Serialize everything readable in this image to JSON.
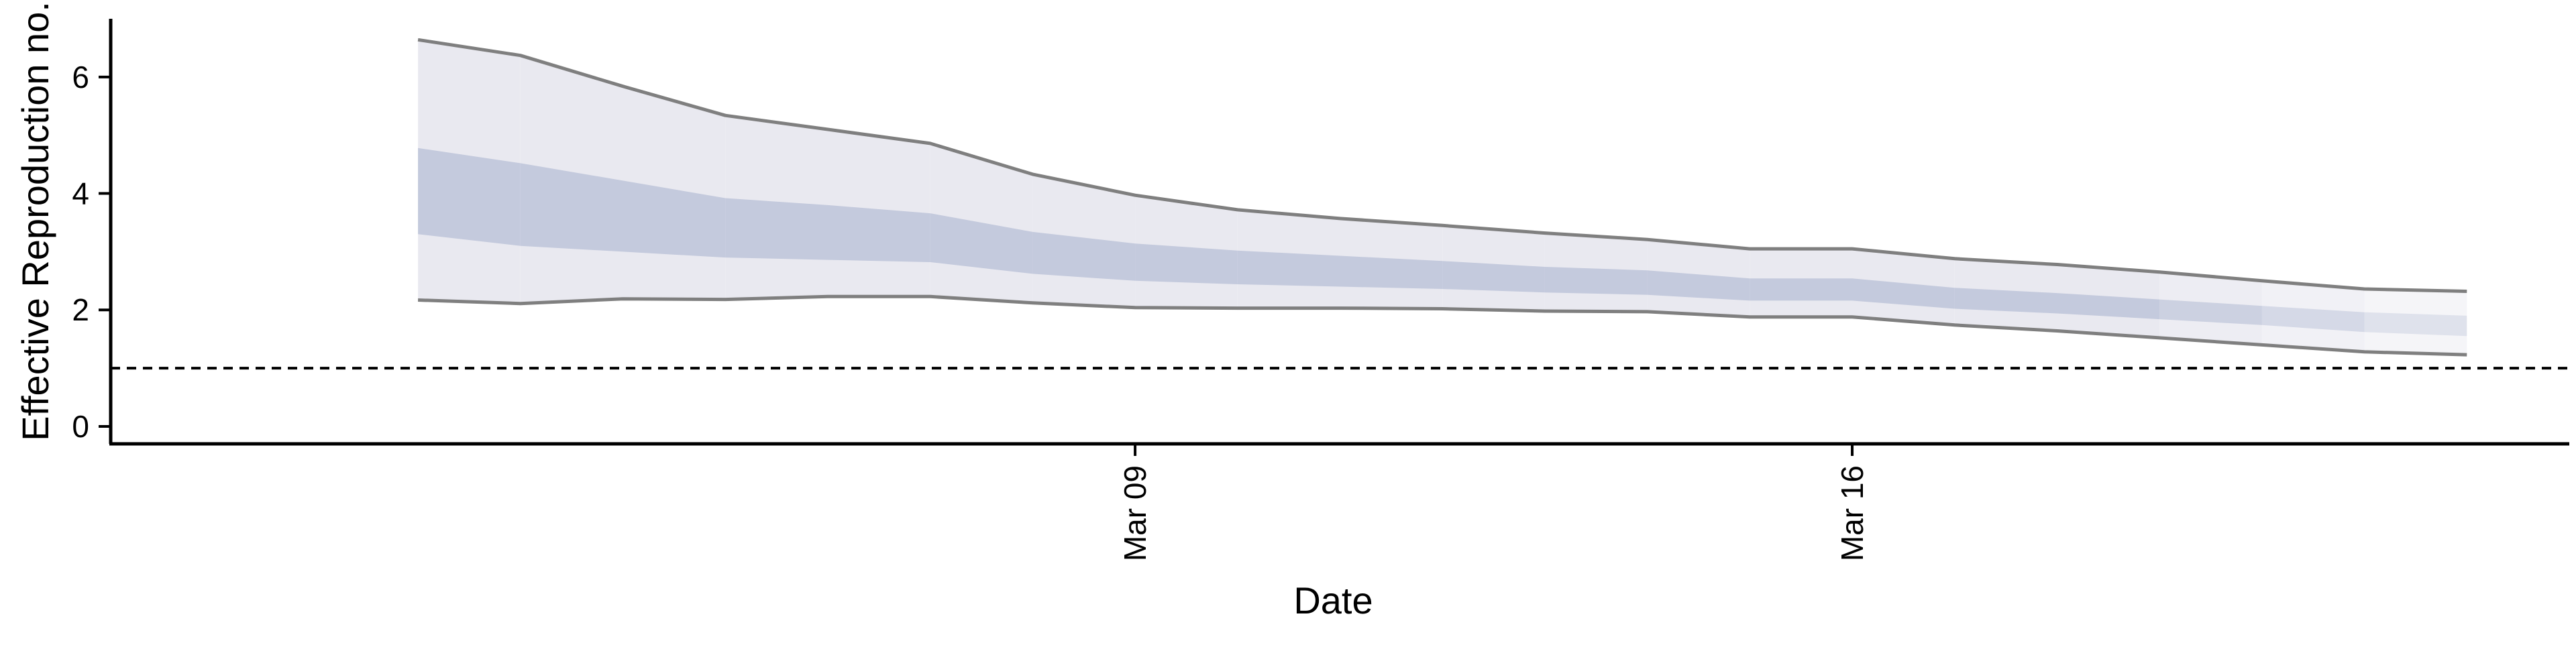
{
  "chart_data": {
    "type": "area",
    "title": "",
    "xlabel": "Date",
    "ylabel": "Effective Reproduction no.",
    "x_axis": {
      "kind": "date",
      "ticks": [
        {
          "date": "2020-03-09",
          "label": "Mar 09"
        },
        {
          "date": "2020-03-16",
          "label": "Mar 16"
        }
      ],
      "range": [
        "2020-02-28",
        "2020-03-23"
      ]
    },
    "y_axis": {
      "ticks": [
        0,
        2,
        4,
        6
      ],
      "range": [
        -0.3,
        7.0
      ]
    },
    "reference_line": {
      "y": 1,
      "style": "dashed"
    },
    "grid": false,
    "legend": "none",
    "colors": {
      "outer_band": "#e9e9f0",
      "inner_band": "#c4cadd",
      "band_edge": "#7f7f7f",
      "reference": "#000000"
    },
    "dates": [
      "2020-03-02",
      "2020-03-03",
      "2020-03-04",
      "2020-03-05",
      "2020-03-06",
      "2020-03-07",
      "2020-03-08",
      "2020-03-09",
      "2020-03-10",
      "2020-03-11",
      "2020-03-12",
      "2020-03-13",
      "2020-03-14",
      "2020-03-15",
      "2020-03-16",
      "2020-03-17",
      "2020-03-18",
      "2020-03-19",
      "2020-03-20",
      "2020-03-21",
      "2020-03-22"
    ],
    "series": [
      {
        "band": "outer",
        "lower": [
          2.17,
          2.11,
          2.19,
          2.18,
          2.23,
          2.23,
          2.12,
          2.04,
          2.03,
          2.03,
          2.02,
          1.98,
          1.97,
          1.88,
          1.88,
          1.74,
          1.64,
          1.52,
          1.4,
          1.28,
          1.23
        ],
        "upper": [
          6.64,
          6.37,
          5.84,
          5.34,
          5.1,
          4.86,
          4.33,
          3.97,
          3.72,
          3.57,
          3.45,
          3.32,
          3.21,
          3.05,
          3.05,
          2.88,
          2.78,
          2.65,
          2.5,
          2.36,
          2.32
        ]
      },
      {
        "band": "inner",
        "lower": [
          3.3,
          3.1,
          3.0,
          2.9,
          2.86,
          2.82,
          2.62,
          2.5,
          2.44,
          2.4,
          2.36,
          2.3,
          2.26,
          2.16,
          2.16,
          2.02,
          1.94,
          1.84,
          1.74,
          1.62,
          1.55
        ],
        "upper": [
          4.78,
          4.52,
          4.22,
          3.92,
          3.8,
          3.66,
          3.34,
          3.14,
          3.02,
          2.93,
          2.84,
          2.74,
          2.68,
          2.54,
          2.54,
          2.38,
          2.29,
          2.18,
          2.07,
          1.96,
          1.9
        ]
      }
    ],
    "fade_from_date": "2020-03-19"
  }
}
